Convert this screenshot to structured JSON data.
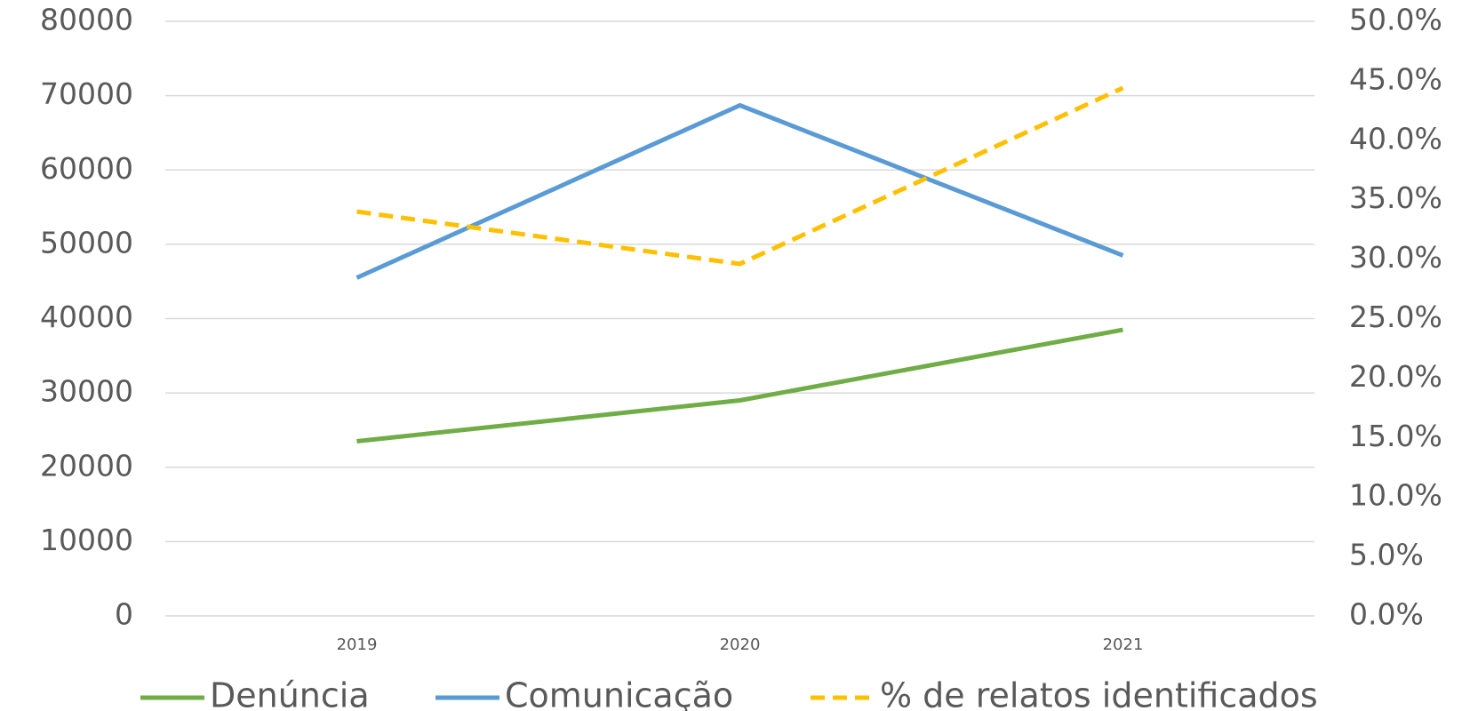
{
  "chart_data": {
    "type": "line",
    "categories": [
      "2019",
      "2020",
      "2021"
    ],
    "series": [
      {
        "name": "Denúncia",
        "color": "#70ad47",
        "values": [
          23500,
          29000,
          38500
        ]
      },
      {
        "name": "Comunicação",
        "color": "#5b9bd5",
        "values": [
          45500,
          68700,
          48500
        ]
      },
      {
        "name": "% de relatos identificados",
        "color": "#ffc000",
        "dashed": true,
        "axis": "y2",
        "values": [
          34.0,
          29.6,
          44.4
        ]
      }
    ],
    "ylim": [
      0,
      80000
    ],
    "yticks": [
      0,
      10000,
      20000,
      30000,
      40000,
      50000,
      60000,
      70000,
      80000
    ],
    "y2lim": [
      0,
      50
    ],
    "y2ticks": [
      {
        "value": 0,
        "label": "0.0%"
      },
      {
        "value": 5,
        "label": "5.0%"
      },
      {
        "value": 10,
        "label": "10.0%"
      },
      {
        "value": 15,
        "label": "15.0%"
      },
      {
        "value": 20,
        "label": "20.0%"
      },
      {
        "value": 25,
        "label": "25.0%"
      },
      {
        "value": 30,
        "label": "30.0%"
      },
      {
        "value": 35,
        "label": "35.0%"
      },
      {
        "value": 40,
        "label": "40.0%"
      },
      {
        "value": 45,
        "label": "45.0%"
      },
      {
        "value": 50,
        "label": "50.0%"
      }
    ],
    "grid": true,
    "legend": "bottom"
  }
}
